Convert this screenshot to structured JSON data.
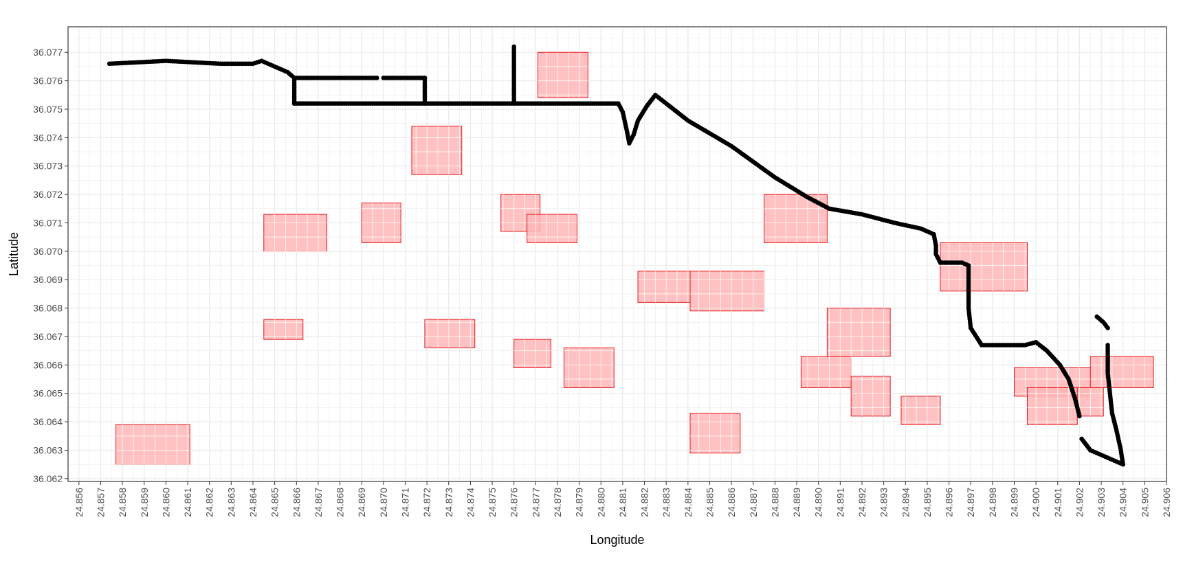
{
  "chart_data": {
    "type": "scatter",
    "title": "",
    "xlabel": "Longitude",
    "ylabel": "Latitude",
    "xlim": [
      24.8555,
      24.906
    ],
    "ylim": [
      36.0619,
      36.0779
    ],
    "x_ticks": [
      "24.856",
      "24.857",
      "24.858",
      "24.859",
      "24.860",
      "24.861",
      "24.862",
      "24.863",
      "24.864",
      "24.865",
      "24.866",
      "24.867",
      "24.868",
      "24.869",
      "24.870",
      "24.871",
      "24.872",
      "24.873",
      "24.874",
      "24.875",
      "24.876",
      "24.877",
      "24.878",
      "24.879",
      "24.880",
      "24.881",
      "24.882",
      "24.883",
      "24.884",
      "24.885",
      "24.886",
      "24.887",
      "24.888",
      "24.889",
      "24.890",
      "24.891",
      "24.892",
      "24.893",
      "24.894",
      "24.895",
      "24.896",
      "24.897",
      "24.898",
      "24.899",
      "24.900",
      "24.901",
      "24.902",
      "24.903",
      "24.904",
      "24.905",
      "24.906"
    ],
    "y_ticks": [
      "36.062",
      "36.063",
      "36.064",
      "36.065",
      "36.066",
      "36.067",
      "36.068",
      "36.069",
      "36.070",
      "36.071",
      "36.072",
      "36.073",
      "36.074",
      "36.075",
      "36.076",
      "36.077"
    ],
    "grid": true,
    "legend": "none",
    "colors": {
      "tile_fill": "#ffb6b6",
      "tile_edge": "#e8141a",
      "point": "#000000",
      "grid": "#ebebeb"
    },
    "tiles": [
      {
        "x0": 24.8577,
        "x1": 24.8611,
        "y0": 36.0625,
        "y1": 36.0639
      },
      {
        "x0": 24.8645,
        "x1": 24.8674,
        "y0": 36.07,
        "y1": 36.0713
      },
      {
        "x0": 24.8645,
        "x1": 24.8663,
        "y0": 36.0669,
        "y1": 36.0676
      },
      {
        "x0": 24.869,
        "x1": 24.8708,
        "y0": 36.0703,
        "y1": 36.0717
      },
      {
        "x0": 24.8713,
        "x1": 24.8736,
        "y0": 36.0727,
        "y1": 36.0744
      },
      {
        "x0": 24.8719,
        "x1": 24.8742,
        "y0": 36.0666,
        "y1": 36.0676
      },
      {
        "x0": 24.8754,
        "x1": 24.8772,
        "y0": 36.0707,
        "y1": 36.072
      },
      {
        "x0": 24.8766,
        "x1": 24.8789,
        "y0": 36.0703,
        "y1": 36.0713
      },
      {
        "x0": 24.8771,
        "x1": 24.8794,
        "y0": 36.0754,
        "y1": 36.077
      },
      {
        "x0": 24.876,
        "x1": 24.8777,
        "y0": 36.0659,
        "y1": 36.0669
      },
      {
        "x0": 24.8783,
        "x1": 24.8806,
        "y0": 36.0652,
        "y1": 36.0666
      },
      {
        "x0": 24.8817,
        "x1": 24.8841,
        "y0": 36.0682,
        "y1": 36.0693
      },
      {
        "x0": 24.8841,
        "x1": 24.8875,
        "y0": 36.0679,
        "y1": 36.0693
      },
      {
        "x0": 24.8841,
        "x1": 24.8864,
        "y0": 36.0629,
        "y1": 36.0643
      },
      {
        "x0": 24.8875,
        "x1": 24.8904,
        "y0": 36.0703,
        "y1": 36.072
      },
      {
        "x0": 24.8892,
        "x1": 24.8915,
        "y0": 36.0652,
        "y1": 36.0663
      },
      {
        "x0": 24.8904,
        "x1": 24.8933,
        "y0": 36.0663,
        "y1": 36.068
      },
      {
        "x0": 24.8915,
        "x1": 24.8933,
        "y0": 36.0642,
        "y1": 36.0656
      },
      {
        "x0": 24.8938,
        "x1": 24.8956,
        "y0": 36.0639,
        "y1": 36.0649
      },
      {
        "x0": 24.8956,
        "x1": 24.8996,
        "y0": 36.0686,
        "y1": 36.0703
      },
      {
        "x0": 24.899,
        "x1": 24.9025,
        "y0": 36.0649,
        "y1": 36.0659
      },
      {
        "x0": 24.8996,
        "x1": 24.9019,
        "y0": 36.0639,
        "y1": 36.0652
      },
      {
        "x0": 24.9019,
        "x1": 24.9031,
        "y0": 36.0642,
        "y1": 36.0652
      },
      {
        "x0": 24.9025,
        "x1": 24.9054,
        "y0": 36.0652,
        "y1": 36.0663
      }
    ],
    "tracks": [
      [
        [
          24.8574,
          36.0766
        ],
        [
          24.86,
          36.0767
        ],
        [
          24.8625,
          36.0766
        ],
        [
          24.864,
          36.0766
        ],
        [
          24.8644,
          36.0767
        ],
        [
          24.865,
          36.0765
        ],
        [
          24.8656,
          36.0763
        ],
        [
          24.8659,
          36.0761
        ],
        [
          24.868,
          36.0761
        ],
        [
          24.8697,
          36.0761
        ]
      ],
      [
        [
          24.87,
          36.0761
        ],
        [
          24.8719,
          36.0761
        ]
      ],
      [
        [
          24.8659,
          36.0761
        ],
        [
          24.8659,
          36.0756
        ],
        [
          24.8659,
          36.0752
        ]
      ],
      [
        [
          24.8659,
          36.0752
        ],
        [
          24.869,
          36.0752
        ],
        [
          24.8719,
          36.0752
        ]
      ],
      [
        [
          24.8719,
          36.0761
        ],
        [
          24.8719,
          36.0756
        ],
        [
          24.8719,
          36.0752
        ]
      ],
      [
        [
          24.8719,
          36.0752
        ],
        [
          24.875,
          36.0752
        ],
        [
          24.8775,
          36.0752
        ],
        [
          24.8788,
          36.0752
        ],
        [
          24.8798,
          36.0752
        ],
        [
          24.8808,
          36.0752
        ],
        [
          24.881,
          36.0749
        ],
        [
          24.8812,
          36.0742
        ],
        [
          24.8813,
          36.0738
        ],
        [
          24.8815,
          36.0741
        ],
        [
          24.8817,
          36.0746
        ],
        [
          24.8821,
          36.0751
        ],
        [
          24.8825,
          36.0755
        ],
        [
          24.883,
          36.0752
        ],
        [
          24.884,
          36.0746
        ],
        [
          24.886,
          36.0737
        ],
        [
          24.888,
          36.0726
        ],
        [
          24.8895,
          36.0719
        ],
        [
          24.8905,
          36.0715
        ],
        [
          24.892,
          36.0713
        ],
        [
          24.8935,
          36.071
        ],
        [
          24.8947,
          36.0708
        ],
        [
          24.8953,
          36.0706
        ],
        [
          24.8954,
          36.0702
        ],
        [
          24.8954,
          36.0699
        ],
        [
          24.8956,
          36.0696
        ],
        [
          24.8966,
          36.0696
        ],
        [
          24.8969,
          36.0695
        ],
        [
          24.8969,
          36.0688
        ],
        [
          24.8969,
          36.068
        ],
        [
          24.897,
          36.0673
        ],
        [
          24.8975,
          36.0667
        ],
        [
          24.8985,
          36.0667
        ],
        [
          24.8995,
          36.0667
        ],
        [
          24.9,
          36.0668
        ],
        [
          24.9005,
          36.0665
        ],
        [
          24.9011,
          36.066
        ],
        [
          24.9015,
          36.0655
        ],
        [
          24.9018,
          36.0648
        ],
        [
          24.902,
          36.0642
        ]
      ],
      [
        [
          24.876,
          36.0752
        ],
        [
          24.876,
          36.0758
        ],
        [
          24.876,
          36.0765
        ],
        [
          24.876,
          36.0772
        ]
      ],
      [
        [
          24.9021,
          36.0634
        ],
        [
          24.9025,
          36.063
        ],
        [
          24.9031,
          36.0628
        ],
        [
          24.9037,
          36.0626
        ],
        [
          24.904,
          36.0625
        ],
        [
          24.9039,
          36.063
        ],
        [
          24.9037,
          36.0637
        ],
        [
          24.9035,
          36.0643
        ],
        [
          24.9034,
          36.065
        ],
        [
          24.9033,
          36.0657
        ],
        [
          24.9033,
          36.0667
        ]
      ],
      [
        [
          24.9028,
          36.0677
        ],
        [
          24.9031,
          36.0675
        ],
        [
          24.9033,
          36.0673
        ]
      ]
    ]
  }
}
